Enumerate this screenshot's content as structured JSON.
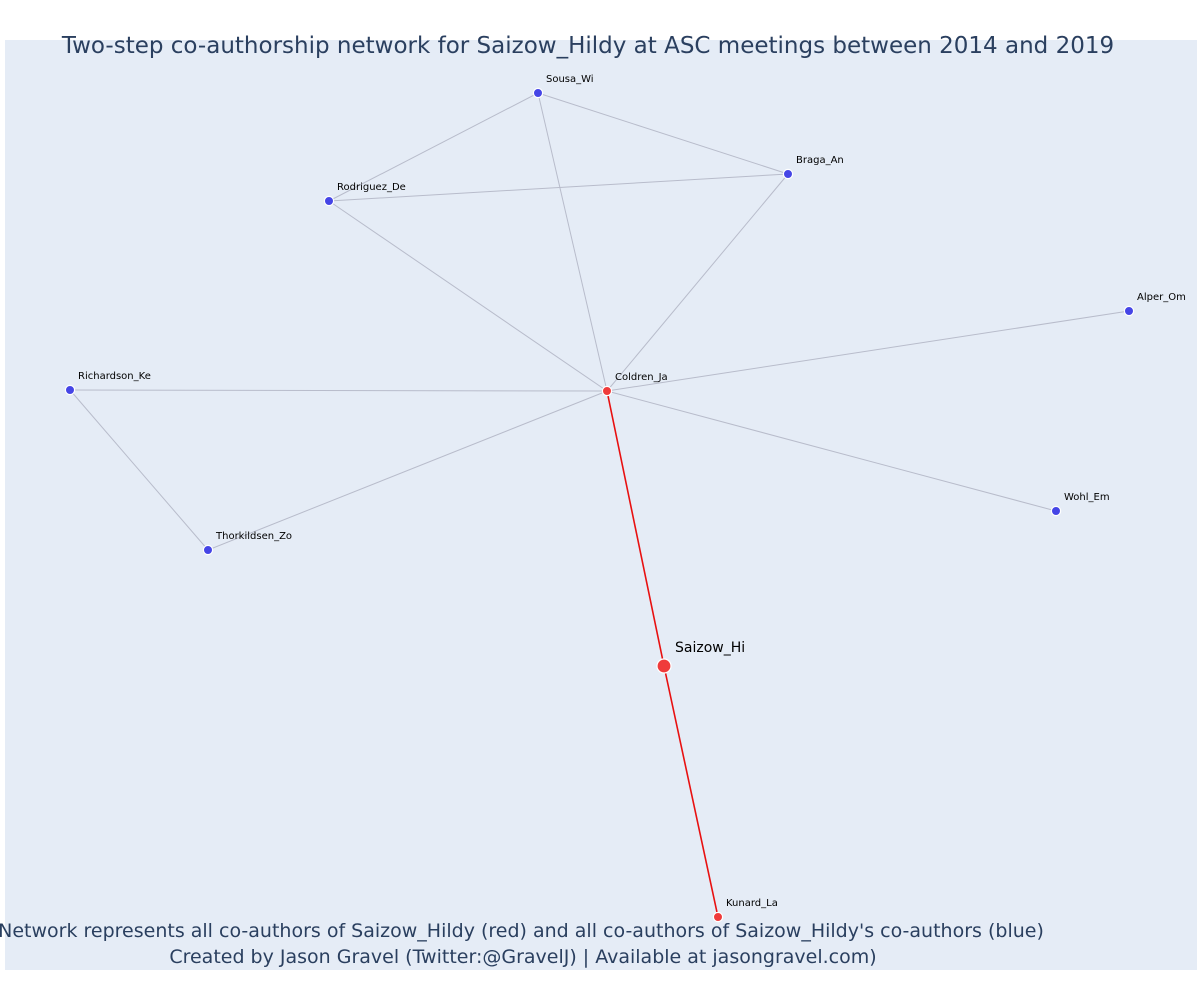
{
  "title": "Two-step co-authorship network for Saizow_Hildy at ASC meetings between 2014 and 2019",
  "caption": {
    "line1": "Network represents all co-authors of Saizow_Hildy (red) and all co-authors of Saizow_Hildy's co-authors (blue)",
    "line2": "Created by Jason Gravel (Twitter:@GravelJ) | Available at jasongravel.com)"
  },
  "colors": {
    "plot_background": "#e5ecf6",
    "title_text": "#2a3f5f",
    "first_degree_node": "#ef3b3b",
    "second_degree_node": "#4545e6",
    "focal_edge": "#e81010",
    "other_edge": "#b8bccb",
    "node_outline": "#ffffff"
  },
  "nodes": [
    {
      "id": "saizow",
      "label": "Saizow_Hi",
      "group": "focal"
    },
    {
      "id": "coldren",
      "label": "Coldren_Ja",
      "group": "co-author"
    },
    {
      "id": "kunard",
      "label": "Kunard_La",
      "group": "co-author"
    },
    {
      "id": "sousa",
      "label": "Sousa_Wi",
      "group": "co-author-of-co-author"
    },
    {
      "id": "braga",
      "label": "Braga_An",
      "group": "co-author-of-co-author"
    },
    {
      "id": "rodriguez",
      "label": "Rodriguez_De",
      "group": "co-author-of-co-author"
    },
    {
      "id": "alper",
      "label": "Alper_Om",
      "group": "co-author-of-co-author"
    },
    {
      "id": "richardson",
      "label": "Richardson_Ke",
      "group": "co-author-of-co-author"
    },
    {
      "id": "wohl",
      "label": "Wohl_Em",
      "group": "co-author-of-co-author"
    },
    {
      "id": "thorkildsen",
      "label": "Thorkildsen_Zo",
      "group": "co-author-of-co-author"
    }
  ],
  "edges": [
    {
      "source": "saizow",
      "target": "coldren",
      "type": "focal"
    },
    {
      "source": "saizow",
      "target": "kunard",
      "type": "focal"
    },
    {
      "source": "coldren",
      "target": "sousa",
      "type": "other"
    },
    {
      "source": "coldren",
      "target": "braga",
      "type": "other"
    },
    {
      "source": "coldren",
      "target": "rodriguez",
      "type": "other"
    },
    {
      "source": "coldren",
      "target": "alper",
      "type": "other"
    },
    {
      "source": "coldren",
      "target": "richardson",
      "type": "other"
    },
    {
      "source": "coldren",
      "target": "wohl",
      "type": "other"
    },
    {
      "source": "coldren",
      "target": "thorkildsen",
      "type": "other"
    },
    {
      "source": "sousa",
      "target": "rodriguez",
      "type": "other"
    },
    {
      "source": "sousa",
      "target": "braga",
      "type": "other"
    },
    {
      "source": "rodriguez",
      "target": "braga",
      "type": "other"
    },
    {
      "source": "richardson",
      "target": "thorkildsen",
      "type": "other"
    }
  ]
}
